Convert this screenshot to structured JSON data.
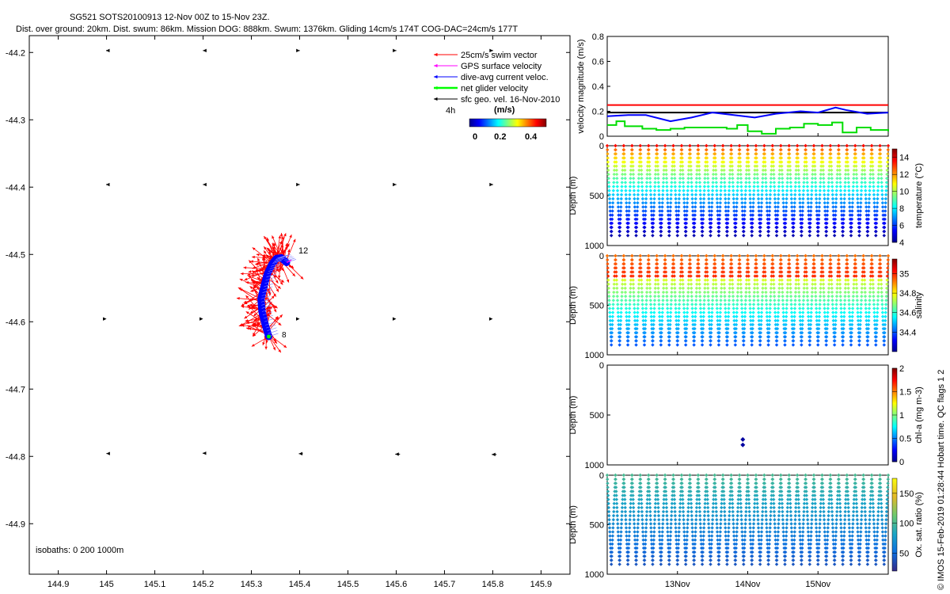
{
  "header": {
    "title": "SG521 SOTS20100913 12-Nov 00Z to 15-Nov 23Z.",
    "subtitle": "Dist. over ground: 20km. Dist. swum: 86km. Mission DOG: 888km. Swum: 1376km. Gliding 14cm/s 174T COG-DAC=24cm/s 177T"
  },
  "credit": "© IMOS 15-Feb-2019 01:28:44 Hobart time. QC flags 1  2",
  "map": {
    "xlim": [
      144.84,
      145.96
    ],
    "ylim": [
      -44.975,
      -44.175
    ],
    "xticks": [
      144.9,
      145,
      145.1,
      145.2,
      145.3,
      145.4,
      145.5,
      145.6,
      145.7,
      145.8,
      145.9
    ],
    "yticks": [
      -44.2,
      -44.3,
      -44.4,
      -44.5,
      -44.6,
      -44.7,
      -44.8,
      -44.9
    ],
    "isobaths_label": "isobaths: 0   200   1000m",
    "legend": [
      {
        "label": "25cm/s swim vector",
        "color": "#ff0000"
      },
      {
        "label": "GPS surface velocity",
        "color": "#ff00ff"
      },
      {
        "label": "dive-avg current veloc.",
        "color": "#0000ff"
      },
      {
        "label": "net glider velocity",
        "color": "#00ff00"
      },
      {
        "label": "sfc geo. vel. 16-Nov-2010",
        "color": "#000000"
      }
    ],
    "track_end_label": "12",
    "track_start_label": "8",
    "time_label": "4h",
    "colorbar": {
      "title": "(m/s)",
      "ticks": [
        "0",
        "0.2",
        "0.4"
      ],
      "range": [
        0,
        0.5
      ]
    },
    "geo_vectors": [
      {
        "lon": 145.0,
        "lat": -44.2,
        "dx": -3,
        "dy": -12
      },
      {
        "lon": 145.2,
        "lat": -44.2,
        "dx": -1,
        "dy": -12
      },
      {
        "lon": 145.4,
        "lat": -44.2,
        "dx": 1,
        "dy": -12
      },
      {
        "lon": 145.6,
        "lat": -44.2,
        "dx": 1,
        "dy": -12
      },
      {
        "lon": 145.8,
        "lat": -44.2,
        "dx": 2,
        "dy": -12
      },
      {
        "lon": 145.0,
        "lat": -44.4,
        "dx": -3,
        "dy": -16
      },
      {
        "lon": 145.2,
        "lat": -44.4,
        "dx": -1,
        "dy": -16
      },
      {
        "lon": 145.4,
        "lat": -44.4,
        "dx": 1,
        "dy": -16
      },
      {
        "lon": 145.6,
        "lat": -44.4,
        "dx": 1,
        "dy": -16
      },
      {
        "lon": 145.8,
        "lat": -44.4,
        "dx": 2,
        "dy": -16
      },
      {
        "lon": 145.0,
        "lat": -44.6,
        "dx": 0,
        "dy": -18
      },
      {
        "lon": 145.2,
        "lat": -44.6,
        "dx": 0,
        "dy": -18
      },
      {
        "lon": 145.4,
        "lat": -44.6,
        "dx": 0,
        "dy": -18
      },
      {
        "lon": 145.6,
        "lat": -44.6,
        "dx": 0,
        "dy": -18
      },
      {
        "lon": 145.8,
        "lat": -44.6,
        "dx": 0,
        "dy": -18
      },
      {
        "lon": 145.0,
        "lat": -44.8,
        "dx": -1,
        "dy": -18
      },
      {
        "lon": 145.2,
        "lat": -44.8,
        "dx": -3,
        "dy": -20
      },
      {
        "lon": 145.4,
        "lat": -44.8,
        "dx": -5,
        "dy": -17
      },
      {
        "lon": 145.6,
        "lat": -44.8,
        "dx": -6,
        "dy": -14
      },
      {
        "lon": 145.8,
        "lat": -44.8,
        "dx": -6,
        "dy": -12
      }
    ],
    "track": [
      [
        145.373,
        -44.512
      ],
      [
        145.362,
        -44.505
      ],
      [
        145.352,
        -44.506
      ],
      [
        145.343,
        -44.514
      ],
      [
        145.333,
        -44.529
      ],
      [
        145.326,
        -44.548
      ],
      [
        145.32,
        -44.566
      ],
      [
        145.322,
        -44.585
      ],
      [
        145.329,
        -44.605
      ],
      [
        145.336,
        -44.622
      ]
    ]
  },
  "chart_data": [
    {
      "type": "line",
      "title": "",
      "ylabel": "velocity magnitude (m/s)",
      "ylim": [
        0,
        0.8
      ],
      "yticks": [
        "0",
        "0.2",
        "0.4",
        "0.6",
        "0.8"
      ],
      "xlim": [
        12.0,
        16.0
      ],
      "series": [
        {
          "name": "swim speed",
          "color": "#ff0000",
          "x": [
            12.0,
            16.0
          ],
          "values": [
            0.25,
            0.25
          ]
        },
        {
          "name": "sfc geo vel",
          "color": "#000000",
          "x": [
            12.0,
            16.0
          ],
          "values": [
            0.19,
            0.19
          ]
        },
        {
          "name": "dive-avg current",
          "color": "#0000ff",
          "x": [
            12.0,
            12.3,
            12.55,
            12.9,
            13.2,
            13.5,
            13.8,
            14.1,
            14.4,
            14.75,
            15.0,
            15.25,
            15.4,
            15.7,
            16.0
          ],
          "values": [
            0.16,
            0.17,
            0.17,
            0.12,
            0.15,
            0.19,
            0.17,
            0.15,
            0.18,
            0.2,
            0.19,
            0.23,
            0.21,
            0.18,
            0.19
          ]
        },
        {
          "name": "net glider velocity",
          "color": "#00dd00",
          "x": [
            12.0,
            12.13,
            12.25,
            12.5,
            12.7,
            12.9,
            13.1,
            13.3,
            13.5,
            13.7,
            13.85,
            14.0,
            14.2,
            14.4,
            14.6,
            14.8,
            15.0,
            15.2,
            15.35,
            15.55,
            15.75,
            16.0
          ],
          "values": [
            0.09,
            0.12,
            0.08,
            0.06,
            0.05,
            0.06,
            0.07,
            0.07,
            0.07,
            0.06,
            0.09,
            0.04,
            0.02,
            0.06,
            0.07,
            0.1,
            0.09,
            0.11,
            0.03,
            0.07,
            0.05,
            0.04
          ]
        }
      ]
    },
    {
      "type": "scatter",
      "variable": "temperature",
      "ylabel": "Depth (m)",
      "cbar_label": "temperature (°C)",
      "ylim": [
        0,
        1000
      ],
      "yticks": [
        "0",
        "500",
        "1000"
      ],
      "clim": [
        4,
        15
      ],
      "cticks": [
        "4",
        "6",
        "8",
        "10",
        "12",
        "14"
      ],
      "profiles": 34,
      "max_depth": 900,
      "surface_value": 13.5,
      "deep_value": 4.5
    },
    {
      "type": "scatter",
      "variable": "salinity",
      "ylabel": "Depth (m)",
      "cbar_label": "salinity",
      "ylim": [
        0,
        1000
      ],
      "yticks": [
        "0",
        "500",
        "1000"
      ],
      "clim": [
        34.2,
        35.15
      ],
      "cticks": [
        "34.4",
        "34.6",
        "34.8",
        "35"
      ],
      "profiles": 34,
      "max_depth": 900,
      "surface_value": 35.0,
      "deep_value": 34.4
    },
    {
      "type": "scatter",
      "variable": "chl-a",
      "ylabel": "Depth (m)",
      "cbar_label": "chl-a (mg m-3)",
      "ylim": [
        0,
        1000
      ],
      "yticks": [
        "0",
        "500",
        "1000"
      ],
      "clim": [
        0,
        2
      ],
      "cticks": [
        "0",
        "0.5",
        "1",
        "1.5",
        "2"
      ],
      "points": [
        {
          "x": 13.93,
          "depth": 745,
          "value": 0.1
        },
        {
          "x": 13.93,
          "depth": 800,
          "value": 0.1
        }
      ]
    },
    {
      "type": "scatter",
      "variable": "oxygen",
      "ylabel": "Depth (m)",
      "cbar_label": "Ox. sat. ratio (%)",
      "ylim": [
        0,
        1000
      ],
      "yticks": [
        "0",
        "500",
        "1000"
      ],
      "clim": [
        20,
        175
      ],
      "cticks": [
        "50",
        "100",
        "150"
      ],
      "xticks": [
        "13Nov",
        "14Nov",
        "15Nov"
      ],
      "profiles": 34,
      "max_depth": 900,
      "surface_value": 100,
      "deep_value": 40
    }
  ]
}
